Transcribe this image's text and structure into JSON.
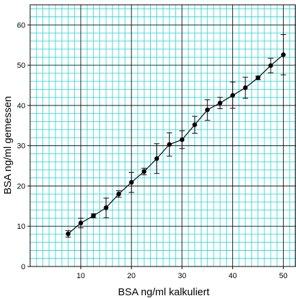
{
  "chart_data": {
    "type": "scatter",
    "title": "",
    "xlabel": "BSA ng/ml kalkuliert",
    "ylabel": "BSA ng/ml gemessen",
    "xlim": [
      0,
      52.5
    ],
    "ylim": [
      0,
      65
    ],
    "xticks": [
      10,
      20,
      30,
      40,
      50
    ],
    "yticks": [
      0,
      10,
      20,
      30,
      40,
      50,
      60
    ],
    "grid": true,
    "grid_color": "#33d6d6",
    "major_grid_color": "#000000",
    "line_color": "#000000",
    "legend": "none",
    "series": [
      {
        "x": [
          7.5,
          10,
          12.5,
          15,
          17.5,
          20,
          22.5,
          25,
          27.5,
          30,
          32.5,
          35,
          37.5,
          40,
          42.5,
          45,
          47.5,
          50
        ],
        "y": [
          8.1,
          10.8,
          12.6,
          14.6,
          18.0,
          20.9,
          23.6,
          26.8,
          30.3,
          31.5,
          35.2,
          38.9,
          40.6,
          42.5,
          44.4,
          46.9,
          49.9,
          52.6
        ],
        "err_low": [
          7.3,
          9.6,
          12.1,
          12.1,
          17.2,
          18.4,
          22.8,
          23.1,
          27.4,
          29.3,
          33.1,
          36.3,
          39.2,
          39.3,
          41.8,
          46.4,
          48.1,
          47.6
        ],
        "err_high": [
          8.9,
          12.0,
          13.1,
          17.0,
          18.8,
          23.4,
          24.4,
          30.5,
          33.2,
          33.7,
          37.3,
          41.4,
          42.0,
          45.8,
          47.0,
          47.3,
          51.7,
          57.6
        ]
      }
    ]
  }
}
